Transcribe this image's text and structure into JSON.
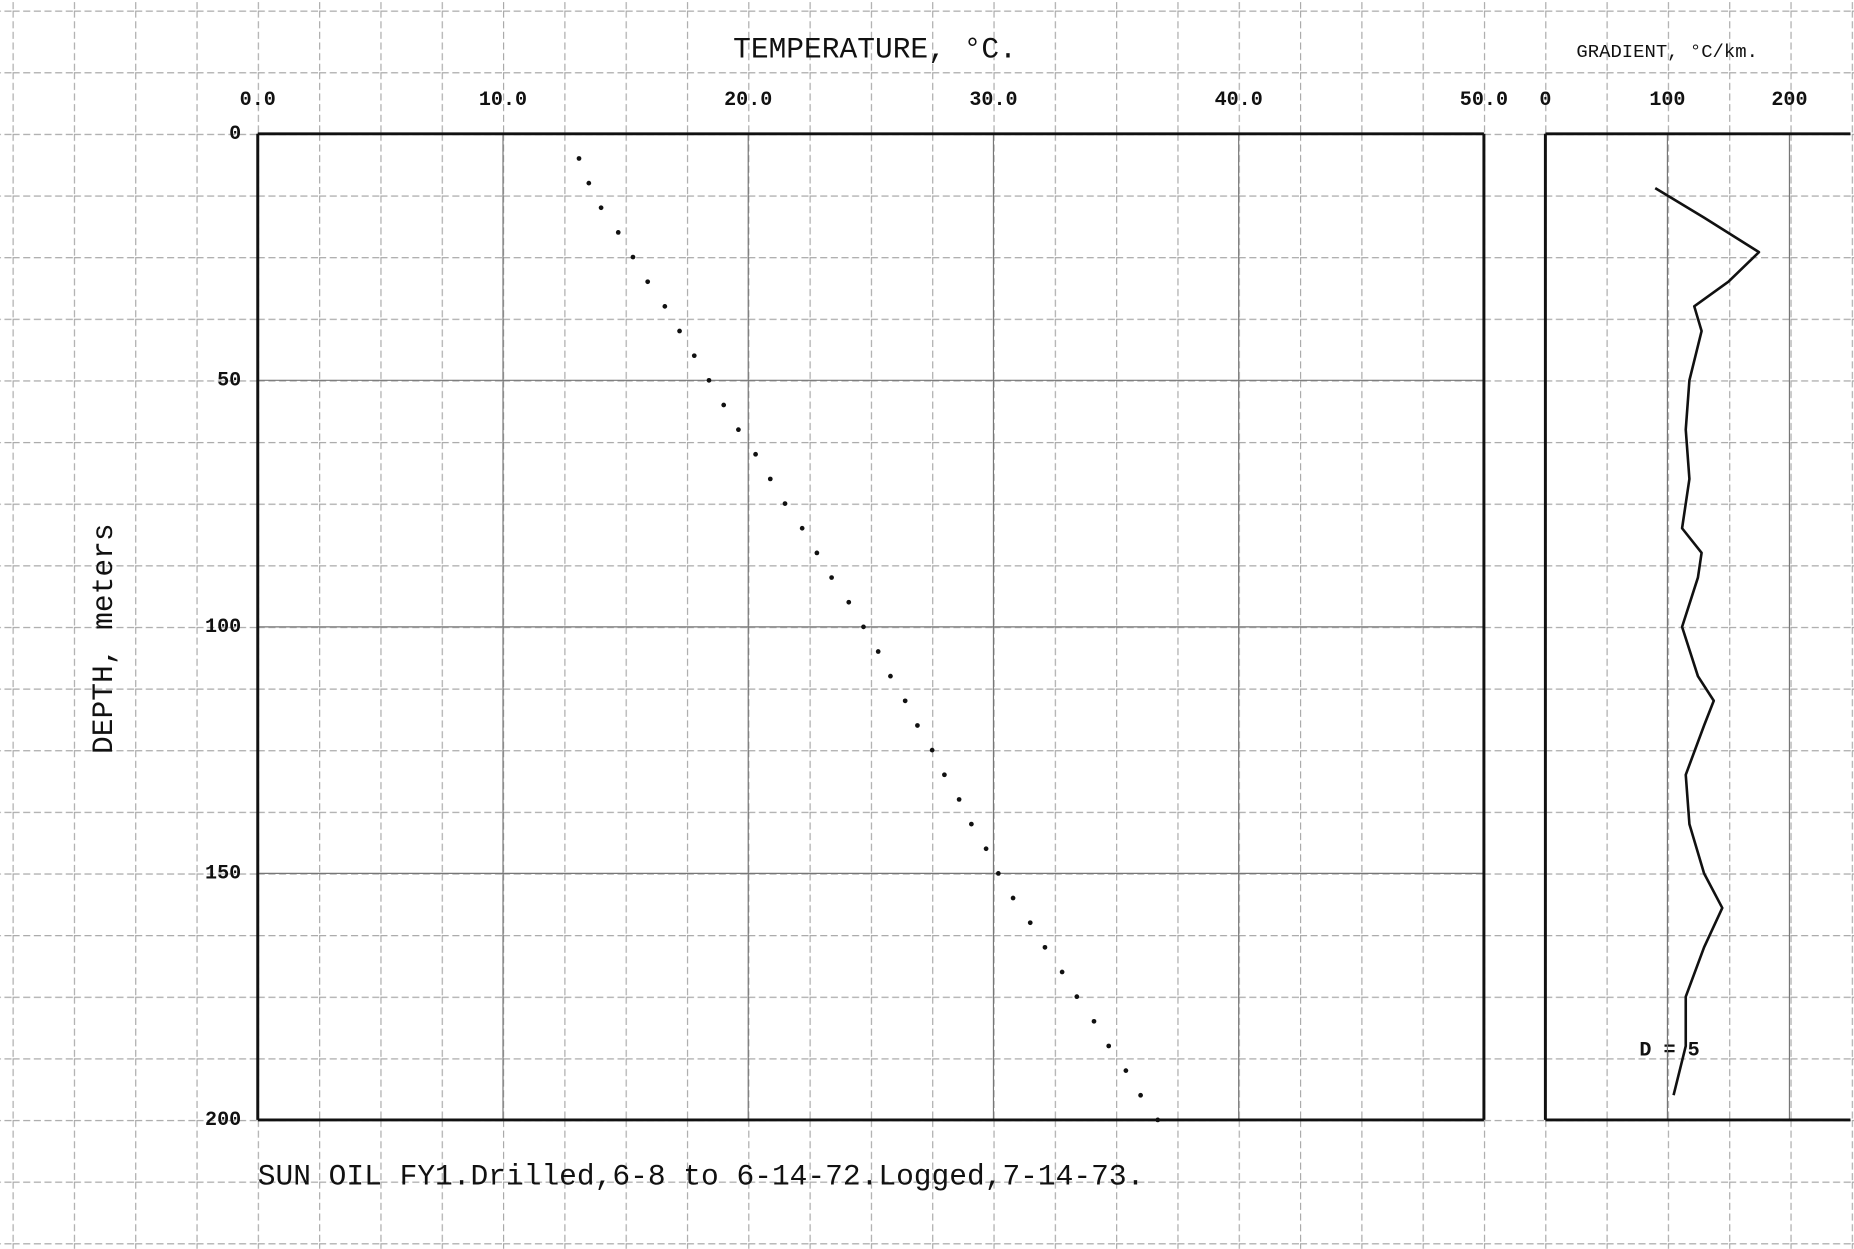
{
  "chart_data": [
    {
      "type": "scatter",
      "title": "TEMPERATURE, °C.",
      "y_label": "DEPTH, meters",
      "footer": "SUN OIL FY1.Drilled,6-8 to 6-14-72.Logged,7-14-73.",
      "color": "#111111",
      "xlim": [
        0,
        50
      ],
      "xticks": [
        {
          "value": 0,
          "label": "0.0"
        },
        {
          "value": 10,
          "label": "10.0"
        },
        {
          "value": 20,
          "label": "20.0"
        },
        {
          "value": 30,
          "label": "30.0"
        },
        {
          "value": 40,
          "label": "40.0"
        },
        {
          "value": 50,
          "label": "50.0"
        }
      ],
      "ylim": [
        0,
        200
      ],
      "yticks": [
        0,
        50,
        100,
        150,
        200
      ],
      "inverted_y": true,
      "grid": true,
      "x": [
        13.1,
        13.5,
        14.0,
        14.7,
        15.3,
        15.9,
        16.6,
        17.2,
        17.8,
        18.4,
        19.0,
        19.6,
        20.3,
        20.9,
        21.5,
        22.2,
        22.8,
        23.4,
        24.1,
        24.7,
        25.3,
        25.8,
        26.4,
        26.9,
        27.5,
        28.0,
        28.6,
        29.1,
        29.7,
        30.2,
        30.8,
        31.5,
        32.1,
        32.8,
        33.4,
        34.1,
        34.7,
        35.4,
        36.0,
        36.7
      ],
      "y": [
        5,
        10,
        15,
        20,
        25,
        30,
        35,
        40,
        45,
        50,
        55,
        60,
        65,
        70,
        75,
        80,
        85,
        90,
        95,
        100,
        105,
        110,
        115,
        120,
        125,
        130,
        135,
        140,
        145,
        150,
        155,
        160,
        165,
        170,
        175,
        180,
        185,
        190,
        195,
        200
      ]
    },
    {
      "type": "line",
      "title": "GRADIENT, °C/km.",
      "annotation": "D = 5",
      "color": "#111111",
      "xlim": [
        0,
        250
      ],
      "xticks": [
        0,
        100,
        200
      ],
      "ylim": [
        0,
        200
      ],
      "inverted_y": true,
      "x": [
        90,
        130,
        175,
        150,
        122,
        128,
        118,
        115,
        118,
        112,
        128,
        125,
        112,
        125,
        138,
        130,
        115,
        118,
        130,
        145,
        130,
        115,
        115,
        105
      ],
      "y": [
        11,
        17,
        24,
        30,
        35,
        40,
        50,
        60,
        70,
        80,
        85,
        90,
        100,
        110,
        115,
        120,
        130,
        140,
        150,
        157,
        165,
        175,
        185,
        195
      ]
    }
  ]
}
